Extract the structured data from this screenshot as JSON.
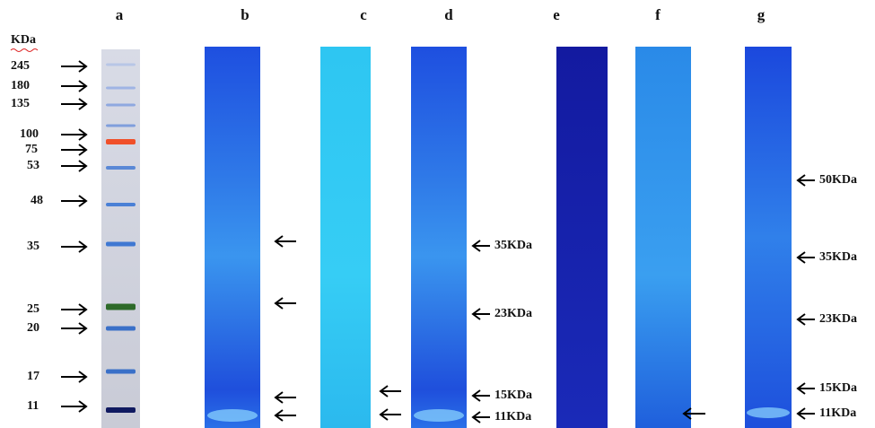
{
  "unit_label": "KDa",
  "lanes": [
    "a",
    "b",
    "c",
    "d",
    "e",
    "f",
    "g"
  ],
  "marker_labels": [
    "245",
    "180",
    "135",
    "100",
    "75",
    "53",
    "48",
    "35",
    "25",
    "20",
    "17",
    "11"
  ],
  "lane_d_bands": [
    "35KDa",
    "23KDa",
    "15KDa",
    "11KDa"
  ],
  "lane_g_bands": [
    "50KDa",
    "35KDa",
    "23KDa",
    "15KDa",
    "11KDa"
  ]
}
